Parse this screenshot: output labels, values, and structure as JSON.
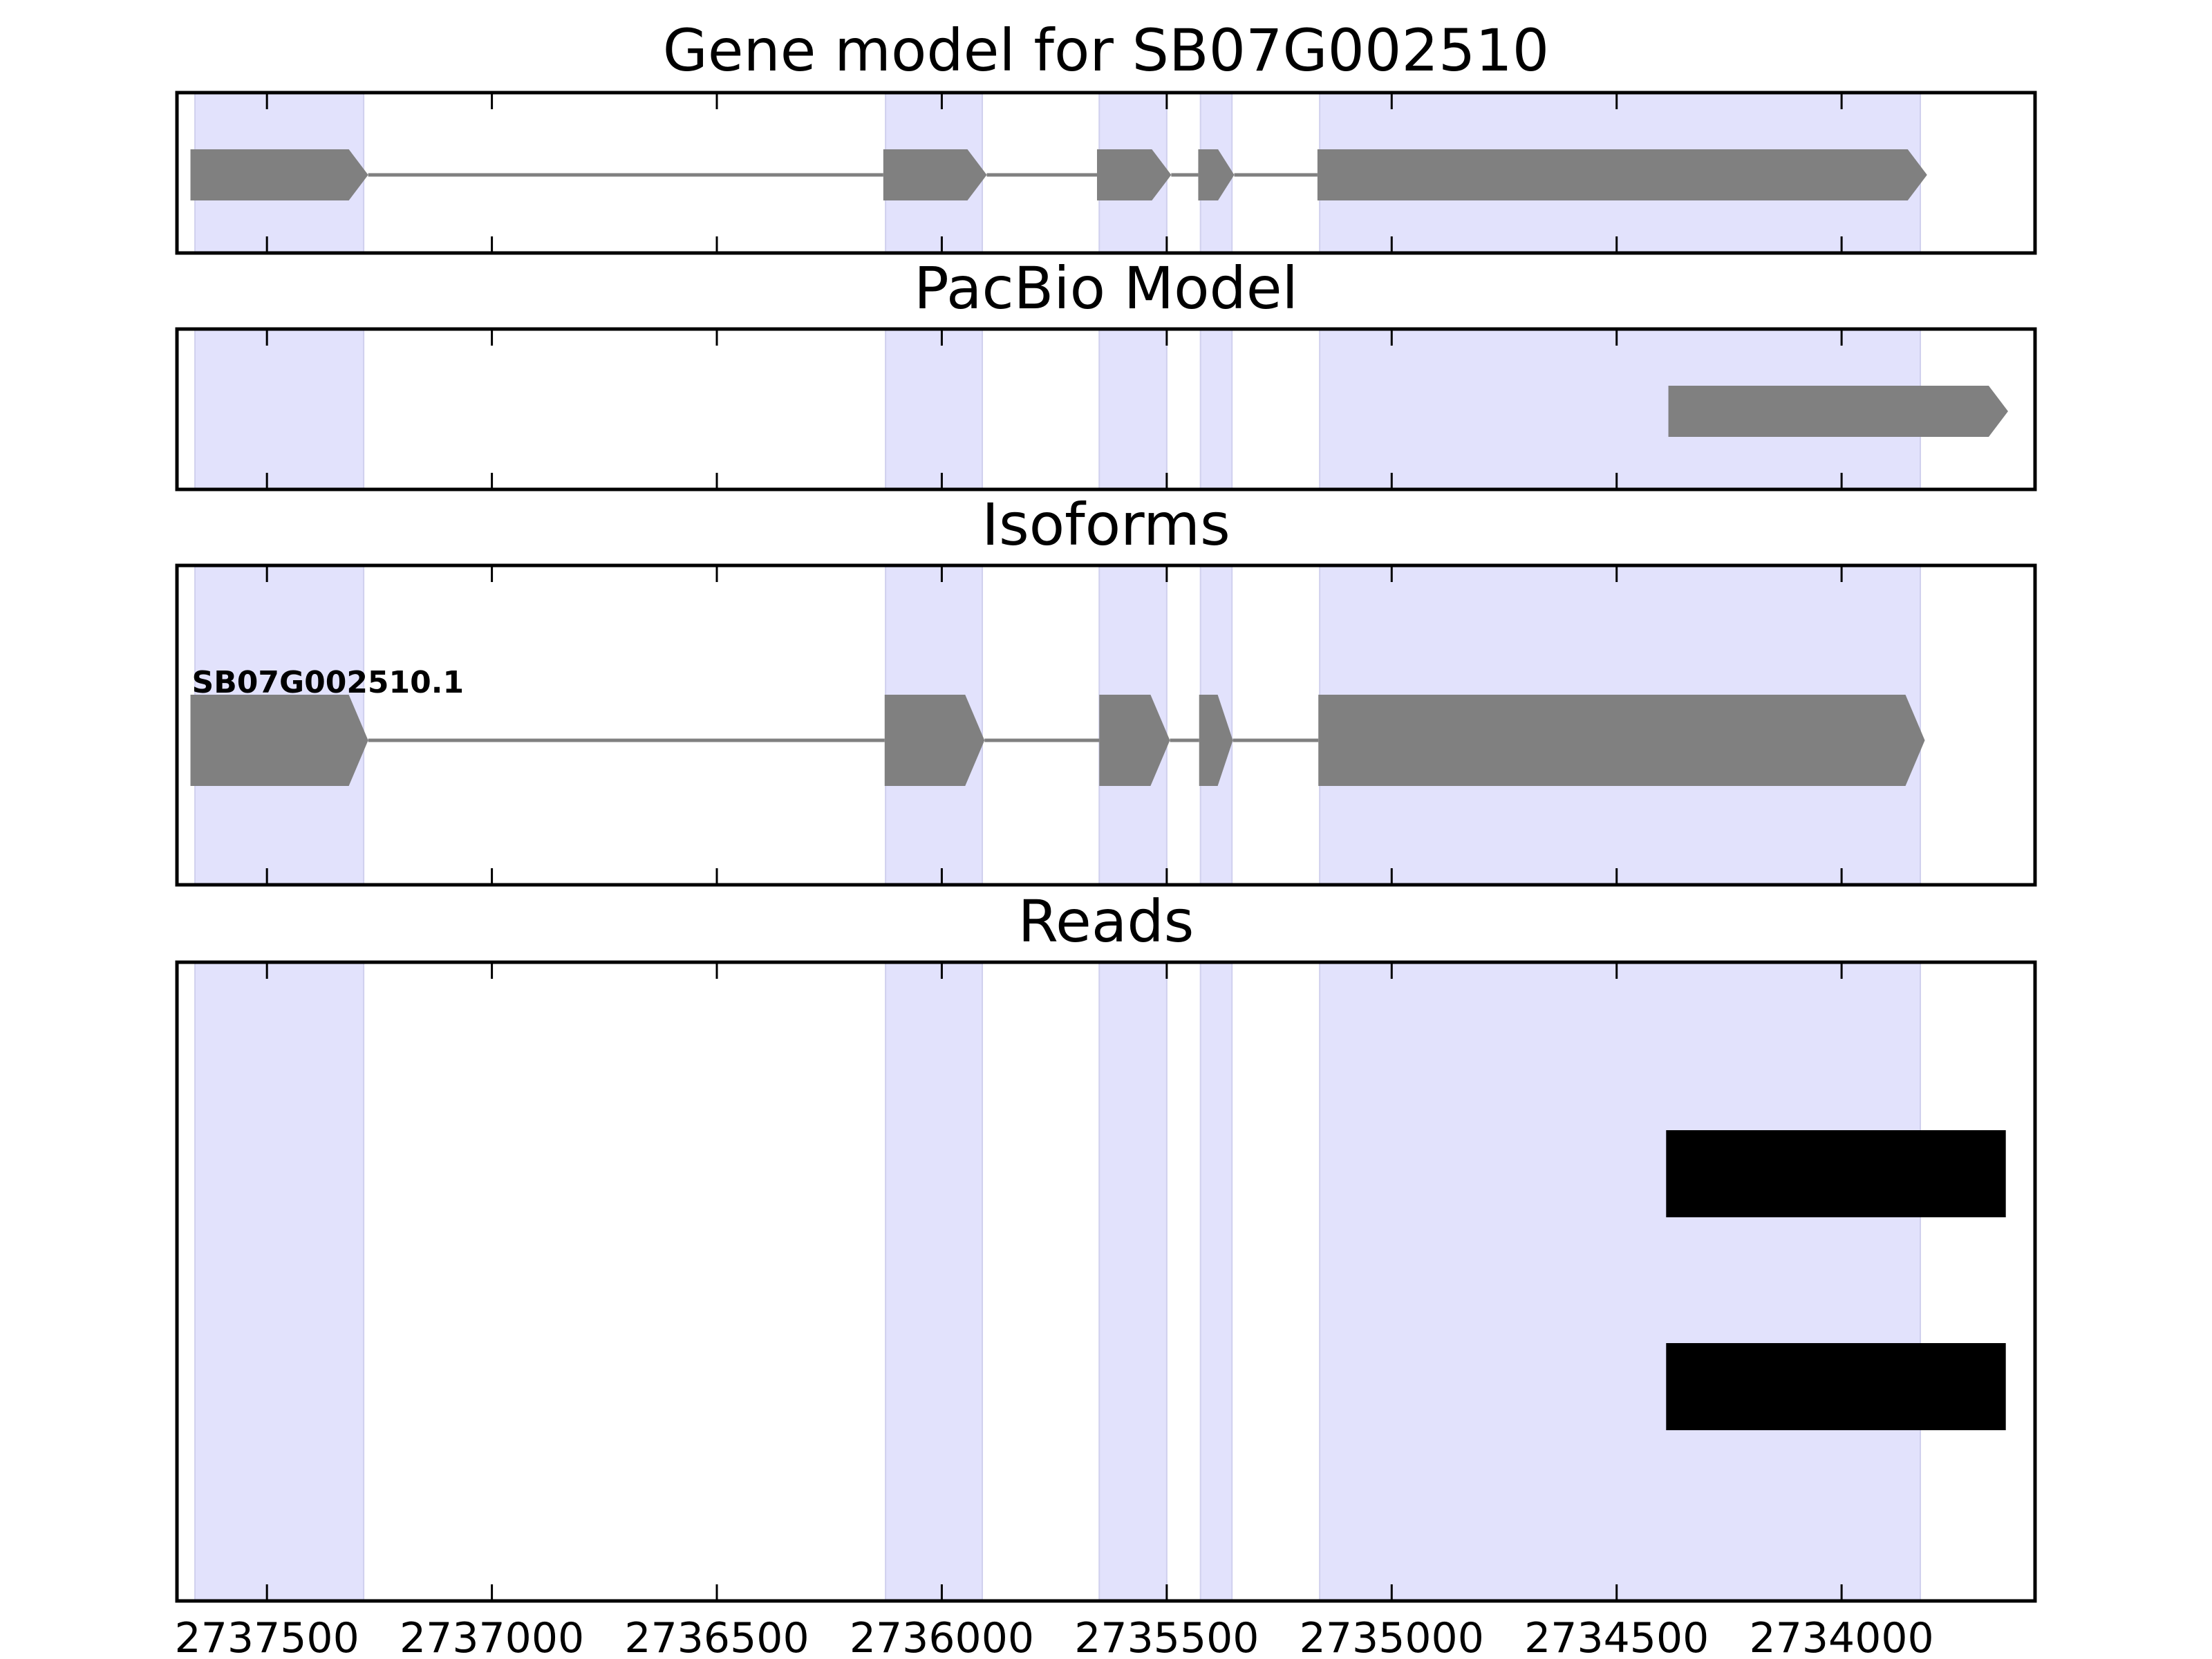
{
  "chart_data": {
    "type": "gene_track",
    "x_ticks": [
      2737500,
      2737000,
      2736500,
      2736000,
      2735500,
      2735000,
      2734500,
      2734000
    ],
    "x_tick_labels": [
      "2737500",
      "2737000",
      "2736500",
      "2736000",
      "2735500",
      "2735000",
      "2734500",
      "2734000"
    ],
    "xlim": [
      2737700,
      2733570
    ],
    "x_reversed": true,
    "exon_regions": [
      [
        2737660,
        2737285
      ],
      [
        2736125,
        2735910
      ],
      [
        2735650,
        2735500
      ],
      [
        2735425,
        2735355
      ],
      [
        2735160,
        2733825
      ]
    ],
    "panels": [
      {
        "id": "gene-model",
        "title": "Gene model for SB07G002510",
        "tracks": [
          {
            "label": "",
            "exons": [
              [
                2737670,
                2737275
              ],
              [
                2736130,
                2735900
              ],
              [
                2735655,
                2735490
              ],
              [
                2735430,
                2735350
              ],
              [
                2735165,
                2733810
              ]
            ]
          }
        ]
      },
      {
        "id": "pacbio-model",
        "title": "PacBio Model",
        "tracks": [
          {
            "label": "",
            "exons": [
              [
                2734385,
                2733630
              ]
            ]
          }
        ]
      },
      {
        "id": "isoforms",
        "title": "Isoforms",
        "tracks": [
          {
            "label": "SB07G002510.1",
            "exons": [
              [
                2737670,
                2737275
              ],
              [
                2736127,
                2735905
              ],
              [
                2735650,
                2735493
              ],
              [
                2735428,
                2735353
              ],
              [
                2735163,
                2733815
              ]
            ]
          }
        ]
      },
      {
        "id": "reads",
        "title": "Reads",
        "reads": [
          [
            2734390,
            2733635
          ],
          [
            2734390,
            2733635
          ]
        ]
      }
    ],
    "colors": {
      "exon": "#808080",
      "intron": "#808080",
      "exon_region": "#e2e2fc",
      "read": "#000000"
    }
  }
}
